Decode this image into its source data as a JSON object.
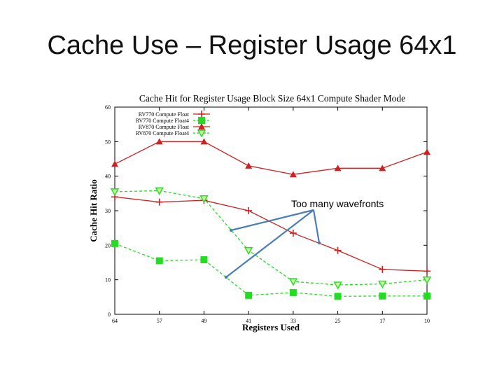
{
  "slide": {
    "title": "Cache Use – Register Usage 64x1"
  },
  "annotation": {
    "text": "Too many wavefronts"
  },
  "colors": {
    "red": "#cc2222",
    "green": "#22dd22",
    "arrow": "#4a7cb5"
  },
  "chart_data": {
    "type": "line",
    "title": "Cache Hit for Register Usage Block Size 64x1 Compute Shader Mode",
    "xlabel": "Registers Used",
    "ylabel": "Cache Hit Ratio",
    "categories": [
      "64",
      "57",
      "49",
      "41",
      "33",
      "25",
      "17",
      "10"
    ],
    "ylim": [
      0,
      60
    ],
    "yticks": [
      "0",
      "10",
      "20",
      "30",
      "40",
      "50",
      "60"
    ],
    "grid": false,
    "legend_position": "top-left",
    "series": [
      {
        "name": "RV770 Compute Float",
        "values": [
          34,
          32.5,
          33,
          30,
          23.5,
          18.5,
          13,
          12.5
        ],
        "color": "#cc2222",
        "marker": "plus",
        "dashed": false
      },
      {
        "name": "RV770 Compute Float4",
        "values": [
          20.5,
          15.5,
          15.8,
          5.5,
          6.3,
          5.2,
          5.3,
          5.3
        ],
        "color": "#22dd22",
        "marker": "square",
        "dashed": true
      },
      {
        "name": "RV870 Compute Float",
        "values": [
          43.5,
          50,
          50,
          43,
          40.5,
          42.3,
          42.3,
          47
        ],
        "color": "#cc2222",
        "marker": "triangle",
        "dashed": false
      },
      {
        "name": "RV870 Compute Float4",
        "values": [
          35.5,
          35.8,
          33.5,
          18.5,
          9.5,
          8.5,
          8.8,
          10
        ],
        "color": "#22dd22",
        "marker": "triangle-down",
        "dashed": true
      }
    ]
  }
}
